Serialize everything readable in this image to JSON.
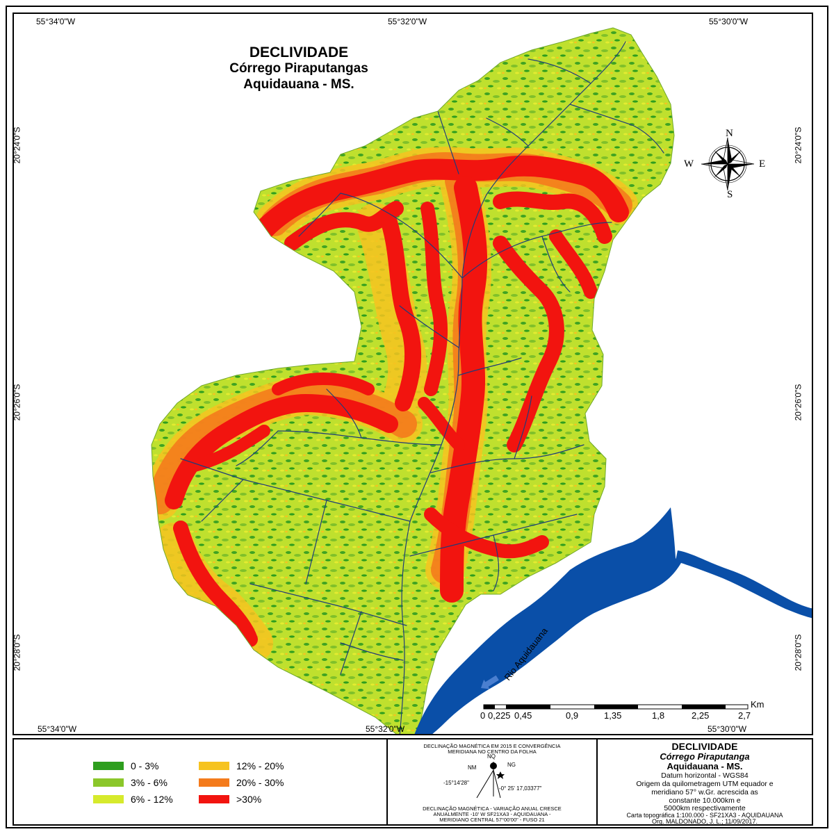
{
  "map": {
    "title_line1": "DECLIVIDADE",
    "title_line2": "Córrego Piraputangas",
    "title_line3": "Aquidauana - MS.",
    "coords": {
      "top_left": "55°34'0\"W",
      "top_mid": "55°32'0\"W",
      "top_right": "55°30'0\"W",
      "top_mid_small": "55",
      "bottom_left": "55°34'0\"W",
      "bottom_mid": "55°32'0\"W",
      "bottom_right": "55°30'0\"W",
      "left_1": "20°24'0\"S",
      "left_2": "20°26'0\"S",
      "left_3": "20°28'0\"S",
      "right_1": "20°24'0\"S",
      "right_2": "20°26'0\"S",
      "right_3": "20°28'0\"S"
    },
    "compass": {
      "n": "N",
      "s": "S",
      "e": "E",
      "w": "W"
    },
    "river_label": "Rio Aquidauana",
    "scale": {
      "unit": "Km",
      "labels": [
        "0",
        "0,225",
        "0,45",
        "0,9",
        "1,35",
        "1,8",
        "2,25",
        "2,7"
      ]
    },
    "colors": {
      "class1": "#2e9e1e",
      "class2": "#8bc72a",
      "class3": "#d6ea2c",
      "class4": "#f6c320",
      "class5": "#f47b1c",
      "class6": "#f2140f",
      "river": "#0a4fa8",
      "drainage": "#1e3c7a"
    }
  },
  "legend": {
    "items": [
      {
        "label": "0 - 3%",
        "color": "#2e9e1e"
      },
      {
        "label": "3% - 6%",
        "color": "#8bc72a"
      },
      {
        "label": "6% - 12%",
        "color": "#d6ea2c"
      },
      {
        "label": "12% - 20%",
        "color": "#f6c320"
      },
      {
        "label": "20% - 30%",
        "color": "#f47b1c"
      },
      {
        "label": ">30%",
        "color": "#f2140f"
      }
    ]
  },
  "declination": {
    "top_text_1": "DECLINAÇÃO MAGNÉTICA EM 2015 E CONVERGÊNCIA",
    "top_text_2": "MERIDIANA NO CENTRO DA FOLHA",
    "nq": "NQ",
    "nm": "NM",
    "ng": "NG",
    "left_angle": "-15°14'28\"",
    "right_angle": "-0° 25' 17,03377\"",
    "bottom_text_1": "DECLINAÇÃO MAGNÉTICA - VARIAÇÃO ANUAL CRESCE",
    "bottom_text_2": "ANUALMENTE -10' W SF21XA3 - AQUIDAUANA -",
    "bottom_text_3": "MERIDIANO CENTRAL 57°00'00\" - FUSO 21"
  },
  "info": {
    "title": "DECLIVIDADE",
    "subtitle1": "Córrego Piraputanga",
    "subtitle2": "Aquidauana - MS.",
    "datum": "Datum horizontal - WGS84",
    "line1": "Origem da quilometragem UTM equador e",
    "line2": "meridiano 57° w.Gr. acrescida as",
    "line3": "constante 10.000km e",
    "line4": "5000km respectivamente",
    "line5": "Carta topográfica 1:100.000 - SF21XA3 - AQUIDAUANA",
    "line6": "Org. MALDONADO, J. L.; 11/09/2017."
  }
}
